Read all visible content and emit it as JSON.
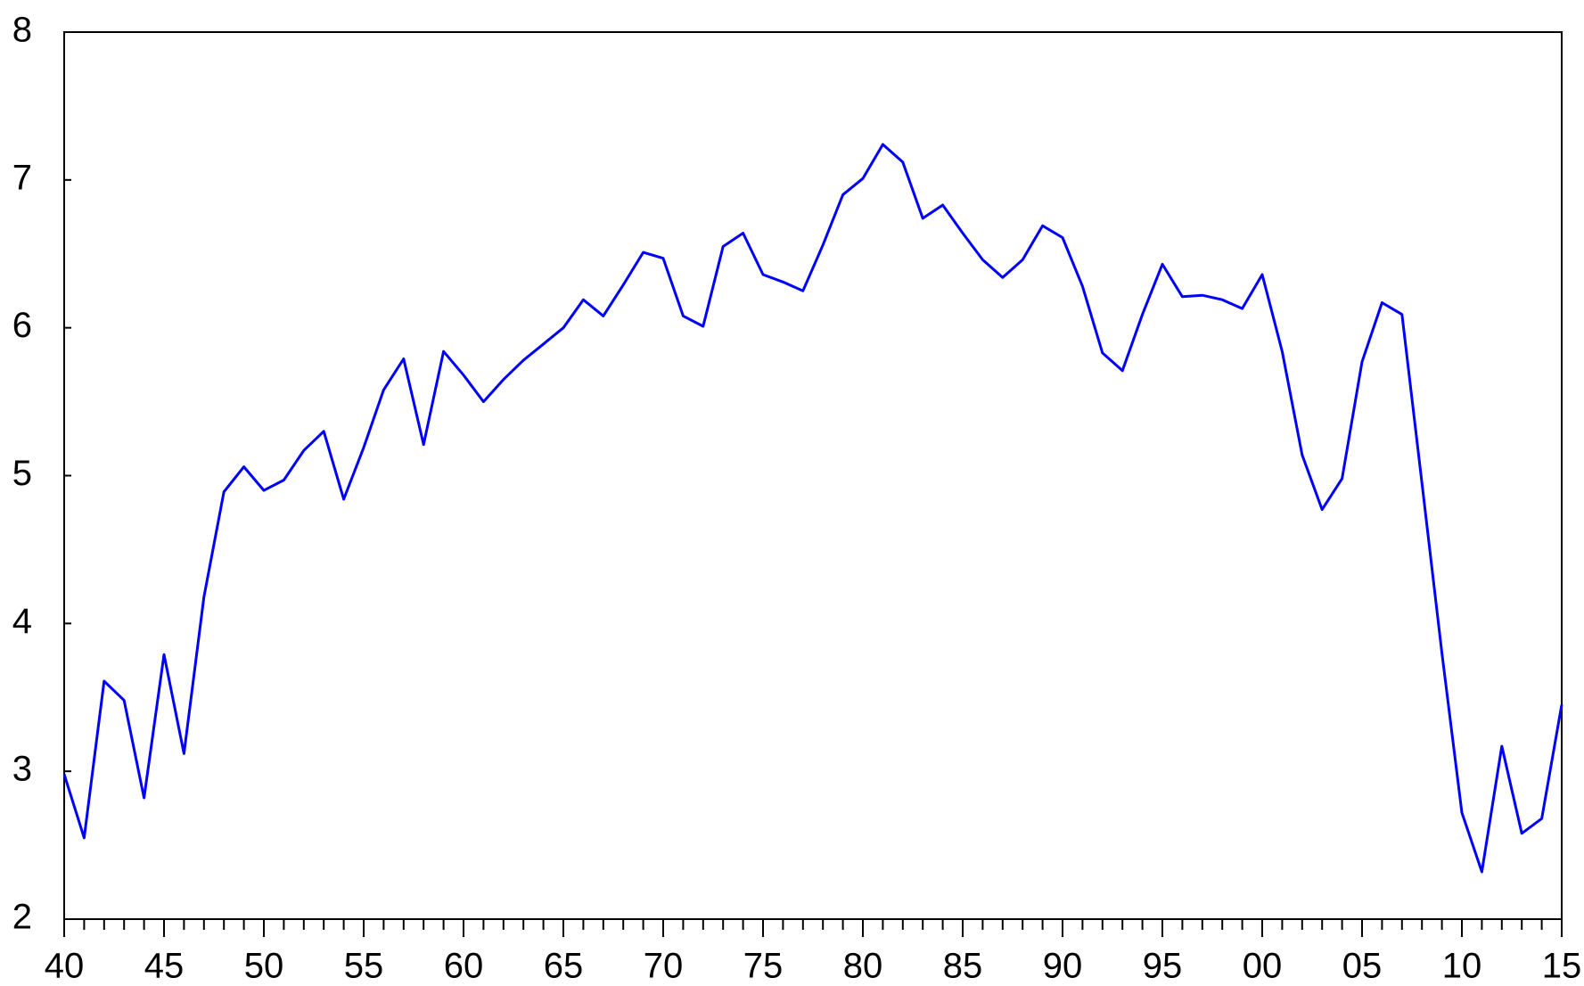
{
  "chart_data": {
    "type": "line",
    "x": [
      1940,
      1941,
      1942,
      1943,
      1944,
      1945,
      1946,
      1947,
      1948,
      1949,
      1950,
      1951,
      1952,
      1953,
      1954,
      1955,
      1956,
      1957,
      1958,
      1959,
      1960,
      1961,
      1962,
      1963,
      1964,
      1965,
      1966,
      1967,
      1968,
      1969,
      1970,
      1971,
      1972,
      1973,
      1974,
      1975,
      1976,
      1977,
      1978,
      1979,
      1980,
      1981,
      1982,
      1983,
      1984,
      1985,
      1986,
      1987,
      1988,
      1989,
      1990,
      1991,
      1992,
      1993,
      1994,
      1995,
      1996,
      1997,
      1998,
      1999,
      2000,
      2001,
      2002,
      2003,
      2004,
      2005,
      2006,
      2007,
      2008,
      2009,
      2010,
      2011,
      2012,
      2013,
      2014,
      2015
    ],
    "series": [
      {
        "color": "#0000ff",
        "values": [
          2.98,
          2.55,
          3.61,
          3.48,
          2.82,
          3.79,
          3.12,
          4.18,
          4.89,
          5.06,
          4.9,
          4.97,
          5.17,
          5.3,
          4.84,
          5.19,
          5.58,
          5.79,
          5.21,
          5.84,
          5.68,
          5.5,
          5.65,
          5.78,
          5.89,
          6.0,
          6.19,
          6.08,
          6.29,
          6.51,
          6.47,
          6.08,
          6.01,
          6.55,
          6.64,
          6.36,
          6.31,
          6.25,
          6.56,
          6.9,
          7.01,
          7.24,
          7.12,
          6.74,
          6.83,
          6.64,
          6.46,
          6.34,
          6.46,
          6.69,
          6.61,
          6.28,
          5.83,
          5.71,
          6.09,
          6.43,
          6.21,
          6.22,
          6.19,
          6.13,
          6.36,
          5.84,
          5.14,
          4.77,
          4.98,
          5.77,
          6.17,
          6.09,
          4.95,
          3.8,
          2.72,
          2.32,
          3.17,
          2.58,
          2.68,
          3.45
        ]
      }
    ],
    "xlim": [
      1940,
      2015
    ],
    "xticks": [
      {
        "value": 1940,
        "label": "40"
      },
      {
        "value": 1945,
        "label": "45"
      },
      {
        "value": 1950,
        "label": "50"
      },
      {
        "value": 1955,
        "label": "55"
      },
      {
        "value": 1960,
        "label": "60"
      },
      {
        "value": 1965,
        "label": "65"
      },
      {
        "value": 1970,
        "label": "70"
      },
      {
        "value": 1975,
        "label": "75"
      },
      {
        "value": 1980,
        "label": "80"
      },
      {
        "value": 1985,
        "label": "85"
      },
      {
        "value": 1990,
        "label": "90"
      },
      {
        "value": 1995,
        "label": "95"
      },
      {
        "value": 2000,
        "label": "00"
      },
      {
        "value": 2005,
        "label": "05"
      },
      {
        "value": 2010,
        "label": "10"
      },
      {
        "value": 2015,
        "label": "15"
      }
    ],
    "ylim": [
      2,
      8
    ],
    "yticks": [
      2,
      3,
      4,
      5,
      6,
      7,
      8
    ],
    "grid": false
  }
}
